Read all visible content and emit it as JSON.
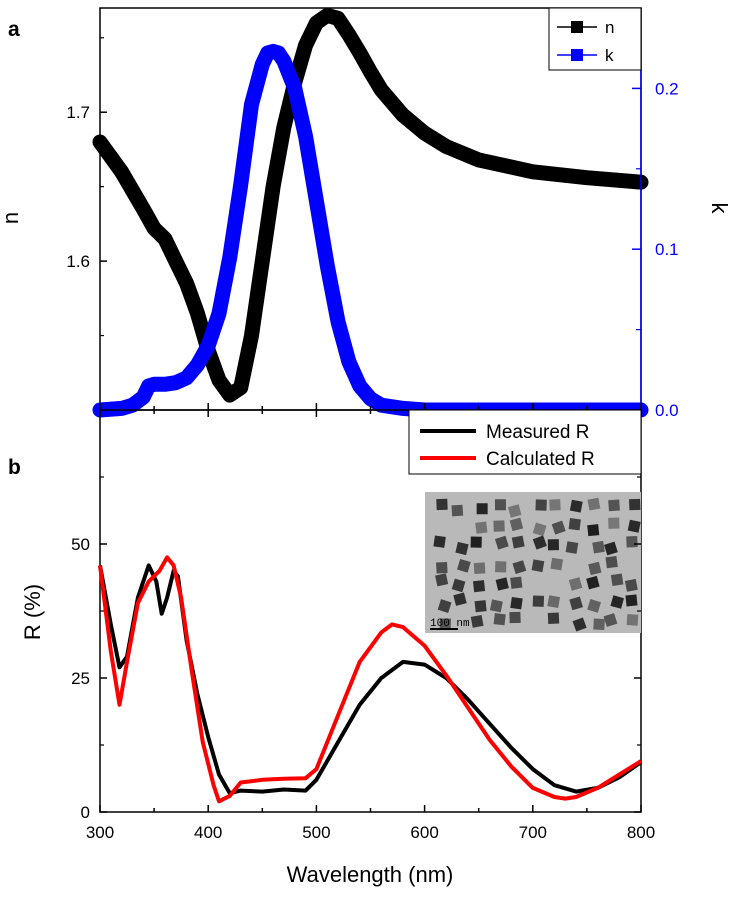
{
  "panel_a_label": "a",
  "panel_b_label": "b",
  "xlabel": "Wavelength (nm)",
  "inset_scale_label": "100 nm",
  "colors": {
    "n": "#000000",
    "k": "#0000ff",
    "measured": "#000000",
    "calculated": "#ff0000"
  },
  "chart_data": [
    {
      "type": "line",
      "panel": "a",
      "x_ticks": [
        "300",
        "400",
        "500",
        "600",
        "700",
        "800"
      ],
      "xlim": [
        300,
        800
      ],
      "ylabel_left": "n",
      "ylabel_right": "k",
      "ylim_left": [
        1.5,
        1.77
      ],
      "ylim_right": [
        0,
        0.25
      ],
      "y_ticks_left": [
        "1.6",
        "1.7"
      ],
      "y_ticks_right": [
        "0.0",
        "0.1",
        "0.2"
      ],
      "legend": [
        "n",
        "k"
      ],
      "legend_position": "top-right",
      "series": [
        {
          "name": "n",
          "axis": "left",
          "x": [
            300,
            320,
            340,
            350,
            360,
            370,
            380,
            390,
            400,
            410,
            420,
            430,
            440,
            450,
            460,
            470,
            480,
            490,
            500,
            510,
            520,
            530,
            540,
            550,
            560,
            580,
            600,
            620,
            650,
            700,
            750,
            800
          ],
          "y": [
            1.68,
            1.66,
            1.635,
            1.622,
            1.615,
            1.6,
            1.585,
            1.565,
            1.54,
            1.52,
            1.51,
            1.515,
            1.55,
            1.6,
            1.65,
            1.69,
            1.72,
            1.745,
            1.76,
            1.765,
            1.763,
            1.752,
            1.74,
            1.727,
            1.715,
            1.698,
            1.686,
            1.677,
            1.668,
            1.66,
            1.656,
            1.653
          ]
        },
        {
          "name": "k",
          "axis": "right",
          "x": [
            300,
            320,
            330,
            340,
            345,
            350,
            360,
            370,
            380,
            390,
            400,
            410,
            420,
            430,
            440,
            450,
            455,
            460,
            465,
            470,
            480,
            490,
            500,
            510,
            520,
            530,
            540,
            550,
            560,
            580,
            600,
            650,
            700,
            800
          ],
          "y": [
            0.0,
            0.001,
            0.003,
            0.008,
            0.015,
            0.016,
            0.016,
            0.017,
            0.02,
            0.028,
            0.04,
            0.06,
            0.095,
            0.14,
            0.19,
            0.215,
            0.222,
            0.223,
            0.222,
            0.217,
            0.2,
            0.17,
            0.13,
            0.09,
            0.055,
            0.03,
            0.015,
            0.007,
            0.003,
            0.001,
            0.0,
            0.0,
            0.0,
            0.0
          ]
        }
      ]
    },
    {
      "type": "line",
      "panel": "b",
      "x_ticks": [
        "300",
        "400",
        "500",
        "600",
        "700",
        "800"
      ],
      "xlim": [
        300,
        800
      ],
      "ylabel": "R (%)",
      "ylim": [
        0,
        75
      ],
      "y_ticks": [
        "0",
        "25",
        "50"
      ],
      "legend": [
        "Measured R",
        "Calculated R"
      ],
      "legend_position": "top-right",
      "series": [
        {
          "name": "Measured R",
          "x": [
            300,
            310,
            318,
            325,
            335,
            345,
            352,
            357,
            362,
            368,
            372,
            380,
            390,
            400,
            410,
            420,
            430,
            450,
            470,
            490,
            500,
            520,
            540,
            560,
            580,
            600,
            620,
            640,
            660,
            680,
            700,
            720,
            740,
            760,
            780,
            800
          ],
          "y": [
            46,
            35,
            27,
            29,
            40,
            46,
            43,
            37,
            40,
            45,
            44,
            32,
            22,
            14,
            7,
            3.5,
            4,
            3.8,
            4.2,
            4,
            6,
            13,
            20,
            25,
            28,
            27.5,
            25,
            21,
            16.5,
            12,
            8,
            5,
            3.8,
            4.5,
            6.5,
            9.3
          ]
        },
        {
          "name": "Calculated R",
          "x": [
            300,
            310,
            318,
            325,
            335,
            345,
            355,
            362,
            368,
            375,
            385,
            395,
            405,
            410,
            420,
            430,
            450,
            470,
            490,
            500,
            520,
            540,
            560,
            570,
            580,
            600,
            620,
            640,
            660,
            680,
            700,
            720,
            730,
            740,
            760,
            780,
            800
          ],
          "y": [
            46,
            30,
            20,
            28,
            39,
            43,
            45,
            47.5,
            46,
            40,
            26,
            13,
            5,
            2,
            3,
            5.5,
            6,
            6.2,
            6.3,
            8,
            18,
            28,
            33.5,
            35,
            34.5,
            31,
            25.5,
            19.5,
            13.5,
            8.5,
            4.5,
            2.8,
            2.5,
            2.8,
            4.5,
            7,
            9.5
          ]
        }
      ]
    }
  ]
}
